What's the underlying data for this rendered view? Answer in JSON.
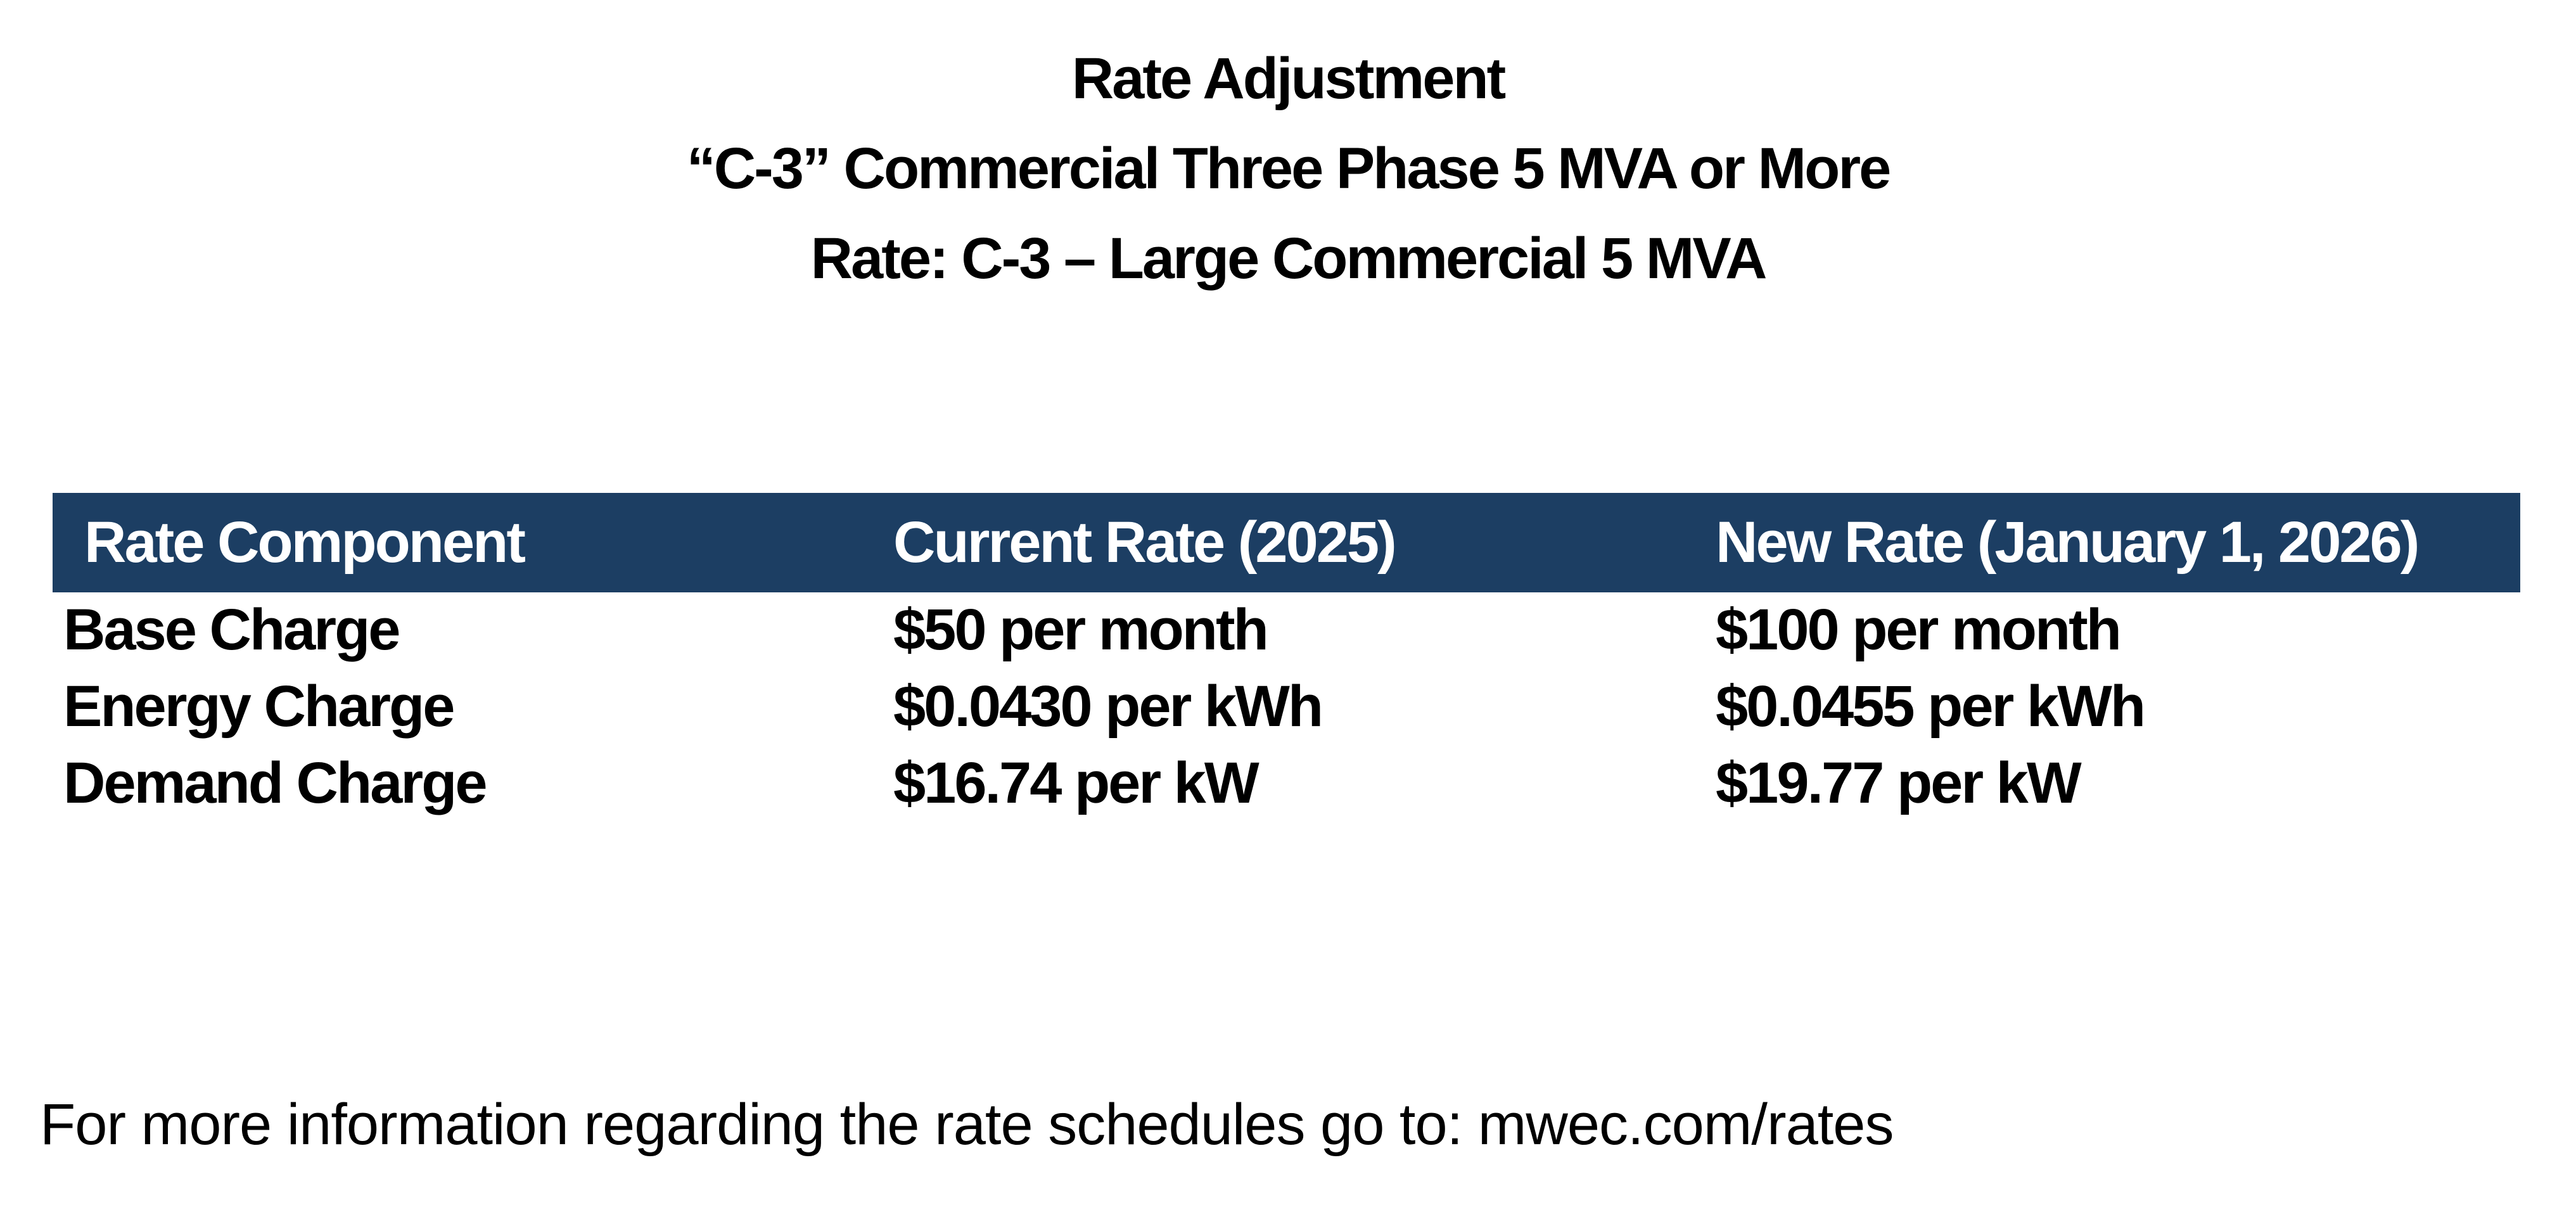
{
  "header": {
    "title": "Rate Adjustment",
    "subtitle": "“C-3” Commercial Three Phase 5 MVA or More",
    "rate_line": "Rate: C-3 – Large Commercial 5 MVA"
  },
  "table": {
    "header_bg_color": "#1C3E63",
    "header_text_color": "#FFFFFF",
    "columns": [
      "Rate Component",
      "Current Rate (2025)",
      "New Rate (January 1, 2026)"
    ],
    "rows": [
      {
        "component": "Base Charge",
        "current": "$50 per month",
        "new": "$100 per month"
      },
      {
        "component": "Energy Charge",
        "current": "$0.0430 per kWh",
        "new": "$0.0455 per kWh"
      },
      {
        "component": "Demand Charge",
        "current": "$16.74 per kW",
        "new": "$19.77 per kW"
      }
    ]
  },
  "footer": {
    "text": "For more information regarding the rate schedules go to: mwec.com/rates"
  }
}
